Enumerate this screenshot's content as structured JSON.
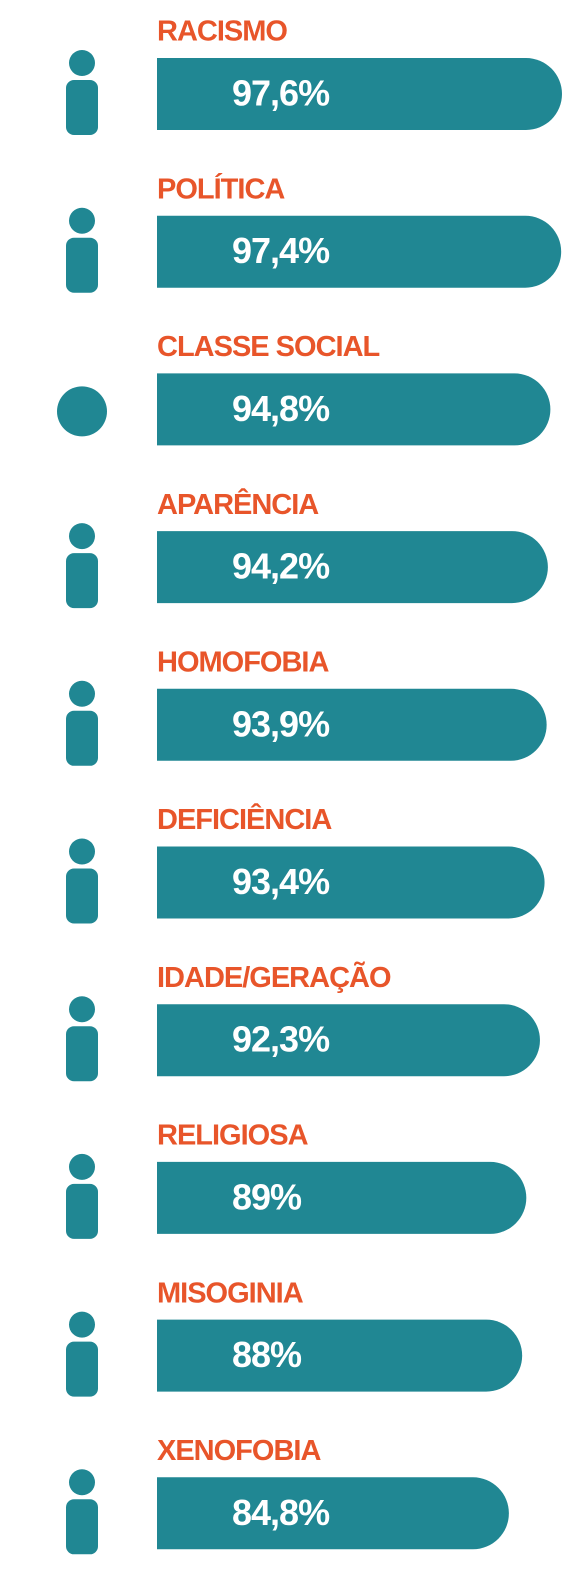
{
  "chart_data": {
    "type": "bar",
    "orientation": "horizontal",
    "categories": [
      "RACISMO",
      "POLÍTICA",
      "CLASSE SOCIAL",
      "APARÊNCIA",
      "HOMOFOBIA",
      "DEFICIÊNCIA",
      "IDADE/GERAÇÃO",
      "RELIGIOSA",
      "MISOGINIA",
      "XENOFOBIA"
    ],
    "values": [
      97.6,
      97.4,
      94.8,
      94.2,
      93.9,
      93.4,
      92.3,
      89,
      88,
      84.8
    ],
    "value_labels": [
      "97,6%",
      "97,4%",
      "94,8%",
      "94,2%",
      "93,9%",
      "93,4%",
      "92,3%",
      "89%",
      "88%",
      "84,8%"
    ],
    "color": "#208793",
    "label_color": "#e8552a"
  }
}
